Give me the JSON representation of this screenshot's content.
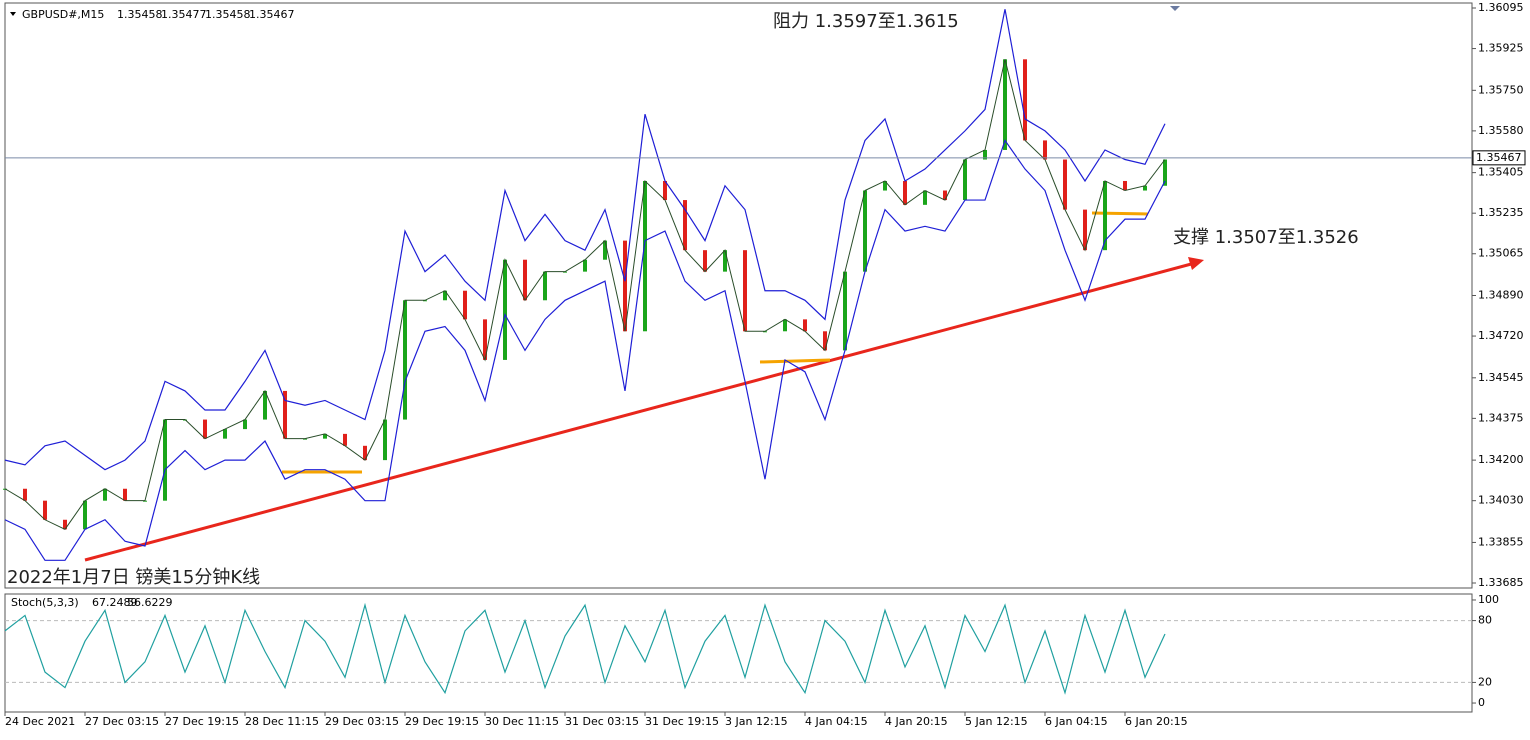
{
  "chart_data": [
    {
      "type": "line",
      "symbol": "GBPUSD#,M15",
      "ohlc": [
        1.35458,
        1.35477,
        1.35458,
        1.35467
      ],
      "annotations": [
        "阻力 1.3597至1.3615",
        "支撑 1.3507至1.3526",
        "2022年1月7日 镑美15分钟K线"
      ],
      "categories": [
        "24 Dec 2021",
        null,
        null,
        null,
        "27 Dec 03:15",
        null,
        null,
        null,
        "27 Dec 19:15",
        null,
        null,
        null,
        "28 Dec 11:15",
        null,
        null,
        null,
        "29 Dec 03:15",
        null,
        null,
        null,
        "29 Dec 19:15",
        null,
        null,
        null,
        "30 Dec 11:15",
        null,
        null,
        null,
        "31 Dec 03:15",
        null,
        null,
        null,
        "31 Dec 19:15",
        null,
        null,
        null,
        "3 Jan 12:15",
        null,
        null,
        null,
        "4 Jan 04:15",
        null,
        null,
        null,
        "4 Jan 20:15",
        null,
        null,
        null,
        "5 Jan 12:15",
        null,
        null,
        null,
        "6 Jan 04:15",
        null,
        null,
        null,
        "6 Jan 20:15",
        null,
        null
      ],
      "series": [
        {
          "color": "#1aa51a",
          "values": [
            1.3408,
            1.3403,
            1.3395,
            1.3391,
            1.3403,
            1.3408,
            1.3403,
            1.3403,
            1.3437,
            1.3437,
            1.3429,
            1.3433,
            1.3437,
            1.3449,
            1.3429,
            1.3429,
            1.3431,
            1.3426,
            1.342,
            1.3437,
            1.3487,
            1.3487,
            1.3491,
            1.3479,
            1.3462,
            1.3504,
            1.3487,
            1.3499,
            1.3499,
            1.3504,
            1.3512,
            1.3474,
            1.3537,
            1.3529,
            1.3508,
            1.3499,
            1.3508,
            1.3474,
            1.3474,
            1.3479,
            1.3474,
            1.3466,
            1.3499,
            1.3533,
            1.3537,
            1.3527,
            1.3533,
            1.3529,
            1.3546,
            1.355,
            1.3588,
            1.3554,
            1.3546,
            1.3525,
            1.3508,
            1.3537,
            1.3533,
            1.3535,
            1.3546
          ]
        },
        {
          "color": "#1f1fd6",
          "values": [
            1.342,
            1.3418,
            1.3426,
            1.3428,
            1.3422,
            1.3416,
            1.342,
            1.3428,
            1.3453,
            1.3449,
            1.3441,
            1.3441,
            1.3453,
            1.3466,
            1.3445,
            1.3443,
            1.3445,
            1.3441,
            1.3437,
            1.3466,
            1.3516,
            1.3499,
            1.3506,
            1.3495,
            1.3487,
            1.3533,
            1.3512,
            1.3523,
            1.3512,
            1.3508,
            1.3525,
            1.3495,
            1.3565,
            1.3537,
            1.3525,
            1.3512,
            1.3535,
            1.3525,
            1.3491,
            1.3491,
            1.3487,
            1.3479,
            1.3529,
            1.3554,
            1.3563,
            1.3537,
            1.3542,
            1.355,
            1.3558,
            1.3567,
            1.3609,
            1.3563,
            1.3558,
            1.355,
            1.3537,
            1.355,
            1.3546,
            1.3544,
            1.3561
          ]
        },
        {
          "color": "#1f1fd6",
          "values": [
            1.3395,
            1.3391,
            1.3378,
            1.3378,
            1.3391,
            1.3395,
            1.3386,
            1.3384,
            1.3416,
            1.3424,
            1.3416,
            1.342,
            1.342,
            1.3428,
            1.3412,
            1.3416,
            1.3416,
            1.3412,
            1.3403,
            1.3403,
            1.3453,
            1.3474,
            1.3476,
            1.3466,
            1.3445,
            1.3481,
            1.3466,
            1.3479,
            1.3487,
            1.3491,
            1.3495,
            1.3449,
            1.3512,
            1.3516,
            1.3495,
            1.3487,
            1.3491,
            1.3453,
            1.3412,
            1.3462,
            1.3457,
            1.3437,
            1.3466,
            1.3499,
            1.3525,
            1.3516,
            1.3518,
            1.3516,
            1.3529,
            1.3529,
            1.3554,
            1.3542,
            1.3533,
            1.3508,
            1.3487,
            1.3512,
            1.3521,
            1.3521,
            1.3537
          ]
        }
      ],
      "ylim": [
        1.33664,
        1.36116
      ],
      "yticks": [
        1.36095,
        1.35925,
        {
          "value": 1.3575,
          "label": "1.35750"
        },
        {
          "value": 1.3558,
          "label": "1.35580"
        },
        1.35405,
        1.35235,
        1.35065,
        {
          "value": 1.3489,
          "label": "1.34890"
        },
        {
          "value": 1.3472,
          "label": "1.34720"
        },
        1.34545,
        1.34375,
        {
          "value": 1.342,
          "label": "1.34200"
        },
        {
          "value": 1.3403,
          "label": "1.34030"
        },
        1.33855,
        1.33685
      ]
    },
    {
      "type": "line",
      "title": "Stoch(5,3,3)",
      "indicator_values": [
        67.2489,
        56.6229
      ],
      "series": [
        {
          "color": "#20a0a0",
          "values": [
            70,
            85,
            30,
            15,
            60,
            90,
            20,
            40,
            85,
            30,
            75,
            20,
            90,
            50,
            15,
            80,
            60,
            25,
            95,
            20,
            85,
            40,
            10,
            70,
            90,
            30,
            80,
            15,
            65,
            95,
            20,
            75,
            40,
            90,
            15,
            60,
            85,
            25,
            95,
            40,
            10,
            80,
            60,
            20,
            90,
            35,
            75,
            15,
            85,
            50,
            95,
            20,
            70,
            10,
            85,
            30,
            90,
            25,
            67
          ]
        }
      ],
      "ylim": [
        -8.7,
        105.8
      ],
      "yticks": [
        100,
        80,
        20,
        0
      ]
    }
  ]
}
